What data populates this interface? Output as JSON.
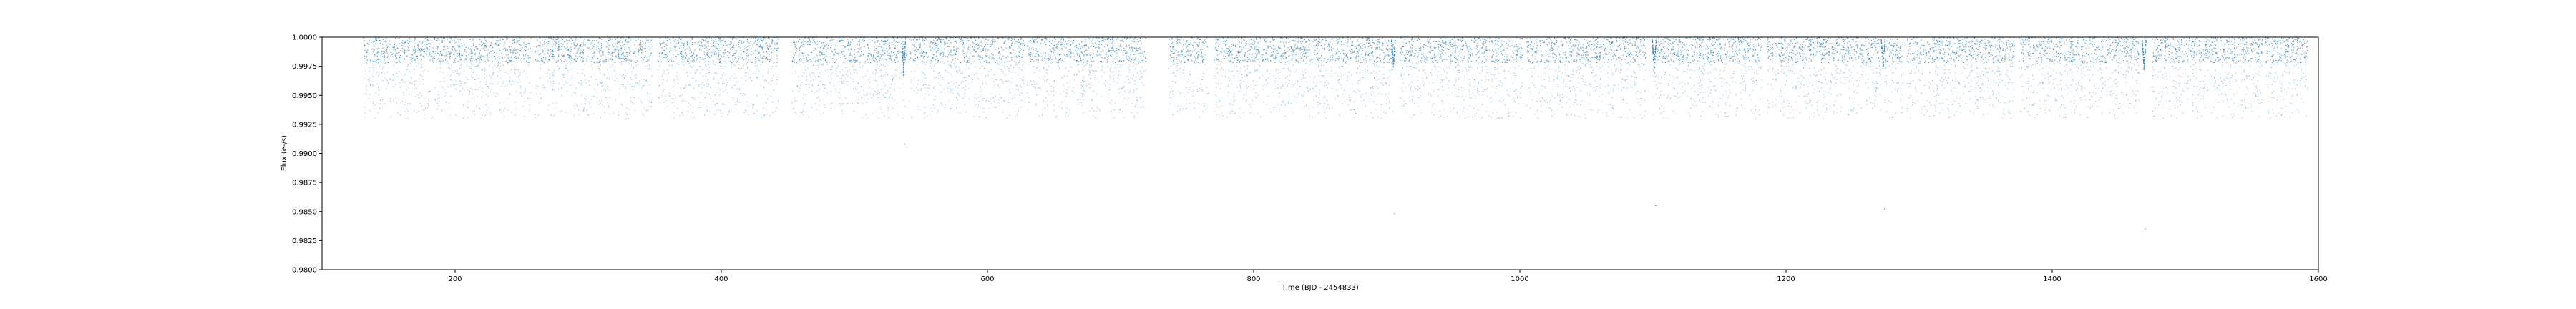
{
  "chart_data": {
    "type": "scatter",
    "title": "",
    "xlabel": "Time (BJD - 2454833)",
    "ylabel": "Flux (e-/s)",
    "xlim": [
      100,
      1600
    ],
    "ylim": [
      0.98,
      1.0
    ],
    "xticks": [
      200,
      400,
      600,
      800,
      1000,
      1200,
      1400,
      1600
    ],
    "xtick_labels": [
      "200",
      "400",
      "600",
      "800",
      "1000",
      "1200",
      "1400",
      "1600"
    ],
    "yticks": [
      0.98,
      0.9825,
      0.985,
      0.9875,
      0.99,
      0.9925,
      0.995,
      0.9975,
      1.0
    ],
    "ytick_labels": [
      "0.9800",
      "0.9825",
      "0.9850",
      "0.9875",
      "0.9900",
      "0.9925",
      "0.9950",
      "0.9975",
      "1.0000"
    ],
    "grid": false,
    "series": [
      {
        "marker_color": "#1f77b4",
        "observing_segments": [
          [
            131,
            257
          ],
          [
            260,
            348
          ],
          [
            352,
            443
          ],
          [
            453,
            539
          ],
          [
            541,
            628
          ],
          [
            630,
            719
          ],
          [
            736,
            766
          ],
          [
            770,
            860
          ],
          [
            861,
            905
          ],
          [
            910,
            1002
          ],
          [
            1005,
            1095
          ],
          [
            1099,
            1182
          ],
          [
            1186,
            1271
          ],
          [
            1274,
            1288
          ],
          [
            1291,
            1372
          ],
          [
            1375,
            1465
          ],
          [
            1475,
            1558
          ],
          [
            1560,
            1592
          ]
        ],
        "transits": [
          {
            "t": 537,
            "min_flux": 0.9967
          },
          {
            "t": 905,
            "min_flux": 0.9972
          },
          {
            "t": 1101,
            "min_flux": 0.9968
          },
          {
            "t": 1273,
            "min_flux": 0.9972
          },
          {
            "t": 1469,
            "min_flux": 0.9972
          }
        ],
        "outliers": [
          {
            "x": 538,
            "y": 0.9908
          },
          {
            "x": 906,
            "y": 0.9848
          },
          {
            "x": 1102,
            "y": 0.9855
          },
          {
            "x": 1274,
            "y": 0.9852
          },
          {
            "x": 1470,
            "y": 0.9835
          }
        ],
        "flux_band": {
          "upper": 1.0,
          "dense_lower": 0.9978,
          "sparse_lower": 0.993
        }
      }
    ]
  }
}
